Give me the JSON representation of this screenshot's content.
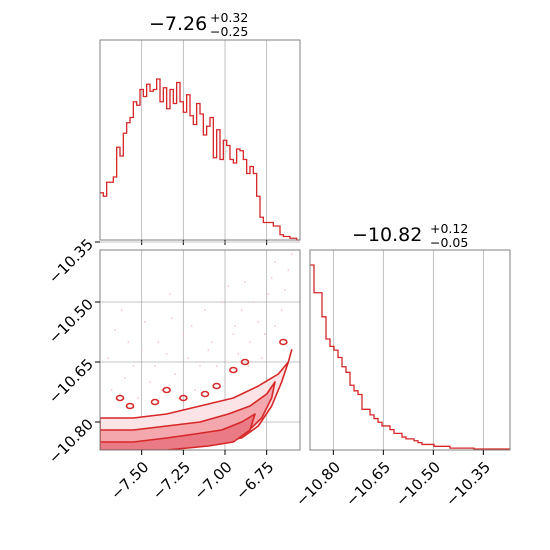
{
  "colors": {
    "accent": "#d62728",
    "grid": "#b0b0b0",
    "contour_fill": "#f4a7ad",
    "frame": "#808080"
  },
  "chart_data": [
    {
      "type": "histogram",
      "panel": "top-left",
      "title": {
        "value": "−7.26",
        "plus": "+0.32",
        "minus": "−0.25"
      },
      "xlim": [
        -7.75,
        -6.55
      ],
      "xticks": [
        -7.5,
        -7.25,
        -7.0,
        -6.75
      ],
      "grid": true,
      "bins_start": -7.75,
      "bin_width": 0.02,
      "values": [
        0.27,
        0.25,
        0.33,
        0.33,
        0.36,
        0.53,
        0.48,
        0.61,
        0.67,
        0.7,
        0.79,
        0.77,
        0.86,
        0.82,
        0.89,
        0.85,
        0.86,
        0.92,
        0.79,
        0.87,
        0.75,
        0.86,
        0.78,
        0.9,
        0.79,
        0.73,
        0.83,
        0.71,
        0.66,
        0.78,
        0.72,
        0.6,
        0.65,
        0.7,
        0.47,
        0.63,
        0.46,
        0.57,
        0.54,
        0.46,
        0.44,
        0.52,
        0.51,
        0.46,
        0.38,
        0.42,
        0.38,
        0.25,
        0.13,
        0.1,
        0.1,
        0.1,
        0.08,
        0.08,
        0.03,
        0.02,
        0.02,
        0.01,
        0.01,
        0.0
      ]
    },
    {
      "type": "scatter-contour",
      "panel": "bottom-left",
      "xlim": [
        -7.75,
        -6.55
      ],
      "ylim": [
        -10.87,
        -10.37
      ],
      "xticks": [
        -7.5,
        -7.25,
        -7.0,
        -6.75
      ],
      "yticks": [
        -10.8,
        -10.65,
        -10.5,
        -10.35
      ],
      "xtick_labels": [
        "−7.50",
        "−7.25",
        "−7.00",
        "−6.75"
      ],
      "ytick_labels": [
        "−10.80",
        "−10.65",
        "−10.50",
        "−10.35"
      ],
      "grid": true,
      "contour_levels": [
        {
          "name": "outer",
          "x": [
            -7.75,
            -7.55,
            -7.35,
            -7.15,
            -6.95,
            -6.8,
            -6.68,
            -6.62,
            -6.6,
            -6.62,
            -6.66,
            -6.72,
            -6.8,
            -6.9,
            -7.05,
            -7.2,
            -7.4,
            -7.6,
            -7.75
          ],
          "y": [
            -10.79,
            -10.79,
            -10.78,
            -10.76,
            -10.74,
            -10.71,
            -10.68,
            -10.65,
            -10.62,
            -10.65,
            -10.7,
            -10.76,
            -10.81,
            -10.84,
            -10.85,
            -10.86,
            -10.86,
            -10.87,
            -10.87
          ]
        },
        {
          "name": "middle",
          "x": [
            -7.75,
            -7.55,
            -7.35,
            -7.15,
            -6.98,
            -6.85,
            -6.75,
            -6.7,
            -6.72,
            -6.78,
            -6.88,
            -7.0,
            -7.2,
            -7.45,
            -7.75
          ],
          "y": [
            -10.82,
            -10.82,
            -10.81,
            -10.8,
            -10.78,
            -10.76,
            -10.73,
            -10.7,
            -10.74,
            -10.79,
            -10.83,
            -10.85,
            -10.86,
            -10.87,
            -10.87
          ]
        },
        {
          "name": "inner",
          "x": [
            -7.75,
            -7.55,
            -7.35,
            -7.18,
            -7.02,
            -6.9,
            -6.82,
            -6.85,
            -6.95,
            -7.1,
            -7.35,
            -7.6,
            -7.75
          ],
          "y": [
            -10.85,
            -10.85,
            -10.84,
            -10.83,
            -10.82,
            -10.8,
            -10.78,
            -10.82,
            -10.85,
            -10.86,
            -10.87,
            -10.87,
            -10.87
          ]
        }
      ],
      "scatter_points": [
        [
          -7.62,
          -10.52
        ],
        [
          -7.48,
          -10.55
        ],
        [
          -7.4,
          -10.6
        ],
        [
          -7.33,
          -10.48
        ],
        [
          -7.2,
          -10.56
        ],
        [
          -7.1,
          -10.62
        ],
        [
          -7.02,
          -10.5
        ],
        [
          -6.95,
          -10.58
        ],
        [
          -6.88,
          -10.45
        ],
        [
          -6.8,
          -10.55
        ],
        [
          -6.74,
          -10.48
        ],
        [
          -6.7,
          -10.4
        ],
        [
          -6.66,
          -10.52
        ],
        [
          -6.62,
          -10.42
        ],
        [
          -7.55,
          -10.66
        ],
        [
          -7.45,
          -10.7
        ],
        [
          -7.3,
          -10.68
        ],
        [
          -7.18,
          -10.72
        ],
        [
          -7.05,
          -10.66
        ],
        [
          -6.92,
          -10.63
        ],
        [
          -6.85,
          -10.6
        ],
        [
          -7.68,
          -10.72
        ],
        [
          -7.58,
          -10.6
        ],
        [
          -7.35,
          -10.63
        ],
        [
          -7.25,
          -10.58
        ],
        [
          -7.12,
          -10.52
        ],
        [
          -6.98,
          -10.46
        ],
        [
          -6.9,
          -10.52
        ],
        [
          -6.76,
          -10.58
        ],
        [
          -6.7,
          -10.56
        ],
        [
          -7.7,
          -10.64
        ],
        [
          -7.52,
          -10.74
        ],
        [
          -7.42,
          -10.66
        ],
        [
          -7.28,
          -10.74
        ],
        [
          -7.15,
          -10.66
        ],
        [
          -7.0,
          -10.7
        ],
        [
          -6.86,
          -10.66
        ],
        [
          -6.78,
          -10.64
        ],
        [
          -6.64,
          -10.47
        ],
        [
          -6.6,
          -10.38
        ],
        [
          -7.6,
          -10.69
        ],
        [
          -7.38,
          -10.72
        ],
        [
          -7.22,
          -10.64
        ],
        [
          -7.08,
          -10.6
        ],
        [
          -6.94,
          -10.56
        ],
        [
          -6.83,
          -10.5
        ],
        [
          -6.72,
          -10.44
        ],
        [
          -7.66,
          -10.57
        ],
        [
          -7.5,
          -10.62
        ],
        [
          -7.32,
          -10.54
        ]
      ],
      "islands": [
        [
          -7.63,
          -10.74
        ],
        [
          -7.57,
          -10.76
        ],
        [
          -7.35,
          -10.72
        ],
        [
          -7.25,
          -10.74
        ],
        [
          -7.05,
          -10.71
        ],
        [
          -6.95,
          -10.67
        ],
        [
          -6.88,
          -10.65
        ],
        [
          -6.65,
          -10.6
        ],
        [
          -7.42,
          -10.75
        ],
        [
          -7.12,
          -10.73
        ]
      ]
    },
    {
      "type": "histogram",
      "panel": "bottom-right",
      "title": {
        "value": "−10.82",
        "plus": "+0.12",
        "minus": "−0.05"
      },
      "xlim": [
        -10.87,
        -10.27
      ],
      "xticks": [
        -10.8,
        -10.65,
        -10.5,
        -10.35
      ],
      "xtick_labels": [
        "−10.80",
        "−10.65",
        "−10.50",
        "−10.35"
      ],
      "grid": true,
      "bins_start": -10.87,
      "bin_width": 0.012,
      "values": [
        1.0,
        0.85,
        0.85,
        0.72,
        0.6,
        0.56,
        0.54,
        0.5,
        0.45,
        0.42,
        0.35,
        0.32,
        0.3,
        0.22,
        0.22,
        0.19,
        0.17,
        0.15,
        0.13,
        0.13,
        0.11,
        0.09,
        0.09,
        0.07,
        0.06,
        0.06,
        0.05,
        0.04,
        0.03,
        0.03,
        0.03,
        0.02,
        0.02,
        0.02,
        0.02,
        0.01,
        0.01,
        0.01,
        0.01,
        0.01,
        0.01,
        0.005,
        0.005,
        0.005,
        0.005,
        0.005,
        0.005,
        0.005,
        0.005,
        0.005
      ]
    }
  ]
}
